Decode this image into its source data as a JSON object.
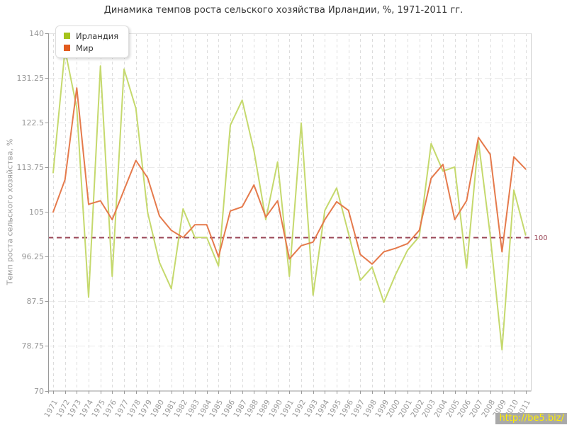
{
  "title": "Динамика темпов роста сельского хозяйства Ирландии, %, 1971-2011 гг.",
  "watermark": {
    "text": "http://be5.biz/",
    "fg": "#ffee00",
    "bg": "#a9a9a9"
  },
  "chart_data": {
    "type": "line",
    "title": "Динамика темпов роста сельского хозяйства Ирландии, %, 1971-2011 гг.",
    "xlabel": "",
    "ylabel": "Темп роста сельского хозяйства, %",
    "ylim": [
      70,
      140
    ],
    "yticks": [
      140,
      131.25,
      122.5,
      113.75,
      105,
      96.25,
      87.5,
      78.75,
      70
    ],
    "grid": "dashed",
    "legend_position": "top-left",
    "x": [
      1971,
      1972,
      1973,
      1974,
      1975,
      1976,
      1977,
      1978,
      1979,
      1980,
      1981,
      1982,
      1983,
      1984,
      1985,
      1986,
      1987,
      1988,
      1989,
      1990,
      1991,
      1992,
      1993,
      1994,
      1995,
      1996,
      1997,
      1998,
      1999,
      2000,
      2001,
      2002,
      2003,
      2004,
      2005,
      2006,
      2007,
      2008,
      2009,
      2010,
      2011
    ],
    "series": [
      {
        "name": "Ирландия",
        "color": "#a5c31c",
        "line_color": "#c5d96d",
        "values": [
          112.7,
          136.8,
          125.4,
          88.3,
          133.6,
          92.4,
          133.0,
          125.3,
          104.9,
          95.1,
          90.0,
          105.6,
          100.0,
          100.0,
          94.4,
          122.0,
          126.9,
          117.0,
          103.5,
          114.8,
          92.4,
          122.4,
          88.7,
          105.3,
          109.7,
          100.8,
          91.6,
          94.2,
          87.3,
          92.8,
          97.5,
          100.2,
          118.4,
          113.0,
          113.8,
          94.0,
          118.9,
          100.5,
          78.0,
          109.3,
          100.5
        ]
      },
      {
        "name": "Мир",
        "color": "#e25b1e",
        "line_color": "#e57a4c",
        "values": [
          105.0,
          111.3,
          129.3,
          106.5,
          107.2,
          103.5,
          109.3,
          115.1,
          111.7,
          104.2,
          101.4,
          100.0,
          102.5,
          102.5,
          96.2,
          105.2,
          106.0,
          110.3,
          104.0,
          107.2,
          95.8,
          98.4,
          99.1,
          103.5,
          107.0,
          105.3,
          96.7,
          94.8,
          97.2,
          97.9,
          98.8,
          101.4,
          111.6,
          114.3,
          103.5,
          107.2,
          119.6,
          116.3,
          97.2,
          115.8,
          113.4
        ]
      }
    ],
    "reference_line": {
      "value": 100,
      "label": "100",
      "color": "#994455"
    }
  }
}
